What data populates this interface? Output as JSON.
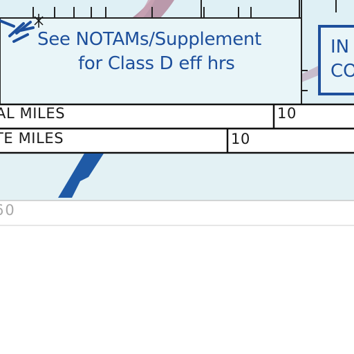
{
  "notam_note": {
    "line1": "See NOTAMs/Supplement",
    "line2": "for Class D eff hrs"
  },
  "info_box": {
    "line1": "IN",
    "line2": "CO"
  },
  "scale_bar": {
    "nautical_miles_label": "AL MILES",
    "nautical_miles_value": "10",
    "statute_miles_label": "TE MILES",
    "statute_miles_value": "10",
    "kilometers_value": "60"
  },
  "colors": {
    "chart_background": "#dff0f5",
    "notam_text": "#1d4f9c",
    "class_b_band": "#b48a9e",
    "airway_band": "#c4b7c8",
    "runway_blue": "#1f5aa6"
  }
}
